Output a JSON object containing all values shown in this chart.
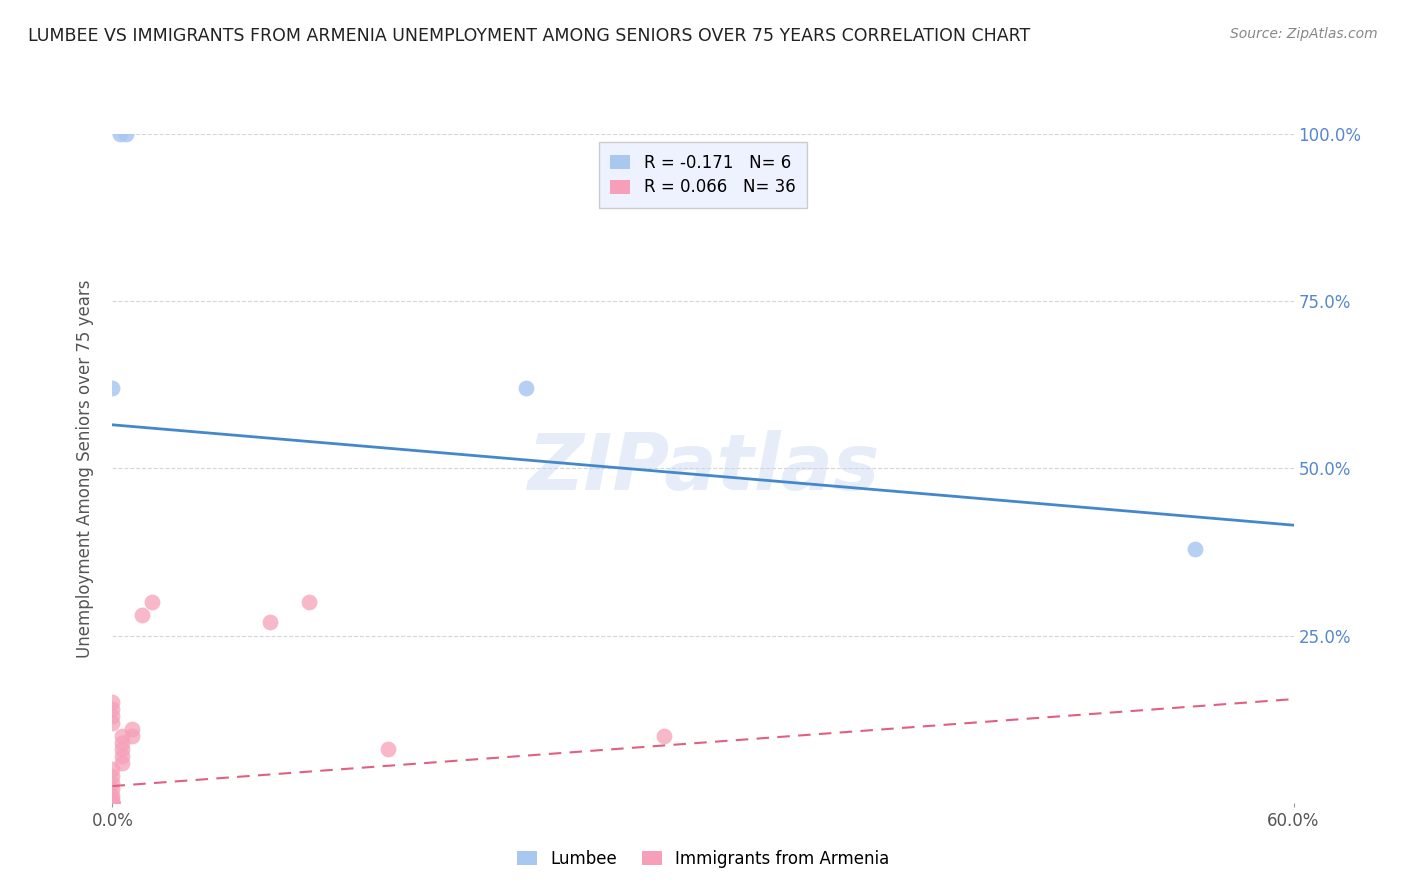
{
  "title": "LUMBEE VS IMMIGRANTS FROM ARMENIA UNEMPLOYMENT AMONG SENIORS OVER 75 YEARS CORRELATION CHART",
  "source": "Source: ZipAtlas.com",
  "ylabel": "Unemployment Among Seniors over 75 years",
  "xlim": [
    0,
    0.6
  ],
  "ylim": [
    0,
    1.0
  ],
  "lumbee_x": [
    0.004,
    0.007,
    0.0,
    0.0,
    0.55,
    0.21
  ],
  "lumbee_y": [
    1.0,
    1.0,
    0.62,
    0.0,
    0.38,
    0.62
  ],
  "armenia_x": [
    0.0,
    0.0,
    0.0,
    0.0,
    0.0,
    0.0,
    0.0,
    0.0,
    0.0,
    0.0,
    0.0,
    0.0,
    0.0,
    0.005,
    0.005,
    0.005,
    0.005,
    0.005,
    0.01,
    0.01,
    0.015,
    0.02,
    0.0,
    0.0,
    0.0,
    0.0,
    0.08,
    0.1,
    0.0,
    0.0,
    0.14,
    0.0,
    0.28,
    0.0,
    0.0,
    0.0
  ],
  "armenia_y": [
    0.0,
    0.0,
    0.0,
    0.0,
    0.0,
    0.0,
    0.0,
    0.005,
    0.01,
    0.02,
    0.03,
    0.04,
    0.05,
    0.06,
    0.07,
    0.08,
    0.09,
    0.1,
    0.1,
    0.11,
    0.28,
    0.3,
    0.12,
    0.13,
    0.14,
    0.15,
    0.27,
    0.3,
    0.0,
    0.0,
    0.08,
    0.0,
    0.1,
    0.0,
    0.0,
    0.0
  ],
  "lumbee_color": "#a8c8f0",
  "armenia_color": "#f5a0b8",
  "lumbee_line_color": "#4488cc",
  "armenia_line_color": "#e06080",
  "lumbee_R": -0.171,
  "lumbee_N": 6,
  "armenia_R": 0.066,
  "armenia_N": 36,
  "blue_line_y0": 0.565,
  "blue_line_y1": 0.415,
  "pink_line_y0": 0.025,
  "pink_line_y1": 0.155,
  "watermark": "ZIPatlas",
  "background_color": "#ffffff",
  "grid_color": "#cccccc"
}
